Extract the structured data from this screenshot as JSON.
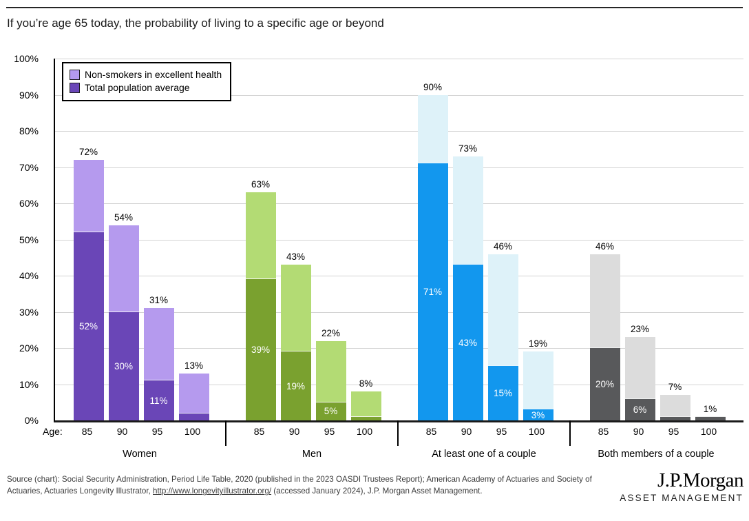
{
  "page": {
    "title": "If you’re age 65 today, the probability of living to a specific age or beyond"
  },
  "axis": {
    "age_row_label": "Age:",
    "y_ticks": [
      "100%",
      "90%",
      "80%",
      "70%",
      "60%",
      "50%",
      "40%",
      "30%",
      "20%",
      "10%",
      "0%"
    ],
    "age_ticks": [
      "85",
      "90",
      "95",
      "100"
    ]
  },
  "legend": {
    "items": [
      {
        "label": "Non-smokers in excellent health",
        "color": "#b59aee",
        "border": "#1c1c1c"
      },
      {
        "label": "Total population average",
        "color": "#6a46b7",
        "border": "#1c1c1c"
      }
    ]
  },
  "chart_data": {
    "type": "bar",
    "title": "If you’re age 65 today, the probability of living to a specific age or beyond",
    "categories": [
      "85",
      "90",
      "95",
      "100"
    ],
    "ylim": [
      0,
      100
    ],
    "ytick_step": 10,
    "grid": true,
    "legend_position": "top-left",
    "series_legend": [
      "Non-smokers in excellent health",
      "Total population average"
    ],
    "groups": [
      {
        "label": "Women",
        "color_light": "#b59aee",
        "color_dark": "#6a46b7",
        "bars": [
          {
            "age": "85",
            "nonsmoker_total": 72,
            "population_average": 52,
            "total_label": "72%",
            "average_label": "52%"
          },
          {
            "age": "90",
            "nonsmoker_total": 54,
            "population_average": 30,
            "total_label": "54%",
            "average_label": "30%"
          },
          {
            "age": "95",
            "nonsmoker_total": 31,
            "population_average": 11,
            "total_label": "31%",
            "average_label": "11%"
          },
          {
            "age": "100",
            "nonsmoker_total": 13,
            "population_average": 2,
            "total_label": "13%",
            "average_label": ""
          }
        ]
      },
      {
        "label": "Men",
        "color_light": "#b3db74",
        "color_dark": "#7aa12f",
        "bars": [
          {
            "age": "85",
            "nonsmoker_total": 63,
            "population_average": 39,
            "total_label": "63%",
            "average_label": "39%"
          },
          {
            "age": "90",
            "nonsmoker_total": 43,
            "population_average": 19,
            "total_label": "43%",
            "average_label": "19%"
          },
          {
            "age": "95",
            "nonsmoker_total": 22,
            "population_average": 5,
            "total_label": "22%",
            "average_label": "5%"
          },
          {
            "age": "100",
            "nonsmoker_total": 8,
            "population_average": 1,
            "total_label": "8%",
            "average_label": ""
          }
        ]
      },
      {
        "label": "At least one of a couple",
        "color_light": "#def2f9",
        "color_dark": "#1297ee",
        "bars": [
          {
            "age": "85",
            "nonsmoker_total": 90,
            "population_average": 71,
            "total_label": "90%",
            "average_label": "71%"
          },
          {
            "age": "90",
            "nonsmoker_total": 73,
            "population_average": 43,
            "total_label": "73%",
            "average_label": "43%"
          },
          {
            "age": "95",
            "nonsmoker_total": 46,
            "population_average": 15,
            "total_label": "46%",
            "average_label": "15%"
          },
          {
            "age": "100",
            "nonsmoker_total": 19,
            "population_average": 3,
            "total_label": "19%",
            "average_label": "3%"
          }
        ]
      },
      {
        "label": "Both members of a couple",
        "color_light": "#dcdcdc",
        "color_dark": "#58595b",
        "bars": [
          {
            "age": "85",
            "nonsmoker_total": 46,
            "population_average": 20,
            "total_label": "46%",
            "average_label": "20%"
          },
          {
            "age": "90",
            "nonsmoker_total": 23,
            "population_average": 6,
            "total_label": "23%",
            "average_label": "6%"
          },
          {
            "age": "95",
            "nonsmoker_total": 7,
            "population_average": 1,
            "total_label": "7%",
            "average_label": ""
          },
          {
            "age": "100",
            "nonsmoker_total": 1,
            "population_average": 1,
            "total_label": "1%",
            "average_label": ""
          }
        ]
      }
    ]
  },
  "footer": {
    "source_prefix": "Source (chart): Social Security Administration, Period Life Table, 2020 (published in the 2023 OASDI Trustees Report); American Academy of Actuaries and Society of Actuaries, Actuaries Longevity Illustrator, ",
    "source_link": "http://www.longevityillustrator.org/",
    "source_suffix": " (accessed January 2024), J.P. Morgan Asset Management.",
    "logo_brand": "J.P.Morgan",
    "logo_sub": "ASSET MANAGEMENT"
  }
}
